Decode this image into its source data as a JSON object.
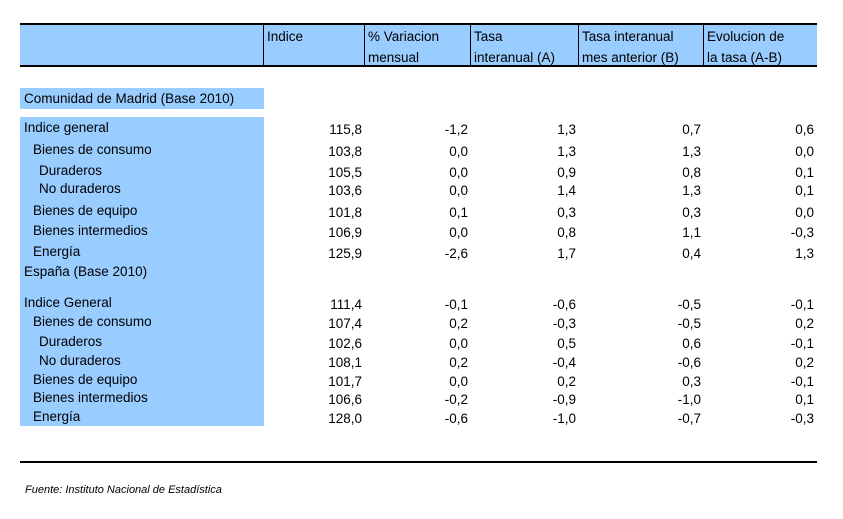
{
  "header": {
    "columns": [
      {
        "line1": "Indice",
        "line2": ""
      },
      {
        "line1": "% Variacion",
        "line2": "mensual"
      },
      {
        "line1": "Tasa",
        "line2": "interanual (A)"
      },
      {
        "line1": "Tasa interanual",
        "line2": "mes anterior (B)"
      },
      {
        "line1": "Evolucion de",
        "line2": "la tasa (A-B)"
      }
    ]
  },
  "madrid": {
    "title": "Comunidad de Madrid (Base 2010)",
    "rows": [
      {
        "label": "Indice general",
        "indent": 0,
        "values": [
          "115,8",
          "-1,2",
          "1,3",
          "0,7",
          "0,6"
        ]
      },
      {
        "label": "Bienes de consumo",
        "indent": 1,
        "values": [
          "103,8",
          "0,0",
          "1,3",
          "1,3",
          "0,0"
        ]
      },
      {
        "label": "Duraderos",
        "indent": 2,
        "values": [
          "105,5",
          "0,0",
          "0,9",
          "0,8",
          "0,1"
        ]
      },
      {
        "label": "No duraderos",
        "indent": 2,
        "values": [
          "103,6",
          "0,0",
          "1,4",
          "1,3",
          "0,1"
        ]
      },
      {
        "label": "Bienes de equipo",
        "indent": 1,
        "values": [
          "101,8",
          "0,1",
          "0,3",
          "0,3",
          "0,0"
        ]
      },
      {
        "label": "Bienes intermedios",
        "indent": 1,
        "values": [
          "106,9",
          "0,0",
          "0,8",
          "1,1",
          "-0,3"
        ]
      },
      {
        "label": "Energía",
        "indent": 1,
        "values": [
          "125,9",
          "-2,6",
          "1,7",
          "0,4",
          "1,3"
        ]
      }
    ]
  },
  "espana": {
    "title": "España (Base 2010)",
    "rows": [
      {
        "label": "Indice General",
        "indent": 0,
        "values": [
          "111,4",
          "-0,1",
          "-0,6",
          "-0,5",
          "-0,1"
        ]
      },
      {
        "label": "Bienes de consumo",
        "indent": 1,
        "values": [
          "107,4",
          "0,2",
          "-0,3",
          "-0,5",
          "0,2"
        ]
      },
      {
        "label": "Duraderos",
        "indent": 2,
        "values": [
          "102,6",
          "0,0",
          "0,5",
          "0,6",
          "-0,1"
        ]
      },
      {
        "label": "No duraderos",
        "indent": 2,
        "values": [
          "108,1",
          "0,2",
          "-0,4",
          "-0,6",
          "0,2"
        ]
      },
      {
        "label": "Bienes de equipo",
        "indent": 1,
        "values": [
          "101,7",
          "0,0",
          "0,2",
          "0,3",
          "-0,1"
        ]
      },
      {
        "label": "Bienes intermedios",
        "indent": 1,
        "values": [
          "106,6",
          "-0,2",
          "-0,9",
          "-1,0",
          "0,1"
        ]
      },
      {
        "label": "Energía",
        "indent": 1,
        "values": [
          "128,0",
          "-0,6",
          "-1,0",
          "-0,7",
          "-0,3"
        ]
      }
    ]
  },
  "footer": {
    "source": "Fuente: Instituto Nacional de Estadística"
  }
}
